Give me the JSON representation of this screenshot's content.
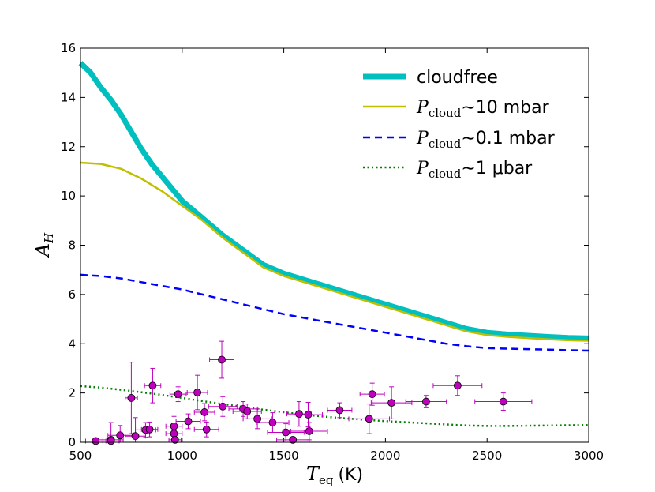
{
  "chart_data": {
    "type": "line",
    "title": "",
    "xlabel": {
      "symbol": "T",
      "subscript": "eq",
      "unit": "(K)"
    },
    "ylabel": {
      "symbol": "A",
      "subscript": "H"
    },
    "xlim": [
      500,
      3000
    ],
    "ylim": [
      0,
      16
    ],
    "xticks": [
      500,
      1000,
      1500,
      2000,
      2500,
      3000
    ],
    "yticks": [
      0,
      2,
      4,
      6,
      8,
      10,
      12,
      14,
      16
    ],
    "legend_position": "top-right",
    "series": [
      {
        "name": "cloudfree",
        "legend": {
          "math": "",
          "sub": "",
          "text": "cloudfree"
        },
        "color": "#00bfbf",
        "style": "solid",
        "weight": "thick",
        "x": [
          500,
          550,
          600,
          650,
          700,
          750,
          800,
          850,
          900,
          950,
          1000,
          1100,
          1200,
          1300,
          1400,
          1500,
          1600,
          1700,
          1800,
          1900,
          2000,
          2100,
          2200,
          2300,
          2400,
          2500,
          2600,
          2700,
          2800,
          2900,
          3000
        ],
        "y": [
          15.4,
          15.0,
          14.4,
          13.9,
          13.3,
          12.6,
          11.9,
          11.3,
          10.8,
          10.3,
          9.8,
          9.1,
          8.4,
          7.8,
          7.2,
          6.85,
          6.6,
          6.35,
          6.1,
          5.85,
          5.6,
          5.35,
          5.1,
          4.85,
          4.6,
          4.45,
          4.38,
          4.33,
          4.28,
          4.24,
          4.22
        ]
      },
      {
        "name": "P_cloud ~10 mbar",
        "legend": {
          "math": "P",
          "sub": "cloud",
          "text": "∼10 mbar"
        },
        "color": "#bfbf00",
        "style": "solid",
        "weight": "normal",
        "x": [
          500,
          600,
          700,
          800,
          900,
          1000,
          1100,
          1200,
          1300,
          1400,
          1500,
          1600,
          1700,
          1800,
          1900,
          2000,
          2100,
          2200,
          2300,
          2400,
          2500,
          2600,
          2700,
          2800,
          2900,
          3000
        ],
        "y": [
          11.35,
          11.3,
          11.1,
          10.7,
          10.2,
          9.6,
          9.0,
          8.3,
          7.7,
          7.1,
          6.75,
          6.5,
          6.25,
          6.0,
          5.75,
          5.5,
          5.25,
          5.0,
          4.75,
          4.5,
          4.35,
          4.28,
          4.23,
          4.18,
          4.14,
          4.12
        ]
      },
      {
        "name": "P_cloud ~0.1 mbar",
        "legend": {
          "math": "P",
          "sub": "cloud",
          "text": "∼0.1 mbar"
        },
        "color": "#0000ff",
        "style": "dashed",
        "weight": "normal",
        "x": [
          500,
          600,
          700,
          800,
          900,
          1000,
          1100,
          1200,
          1300,
          1400,
          1500,
          1600,
          1700,
          1800,
          1900,
          2000,
          2100,
          2200,
          2300,
          2400,
          2500,
          2600,
          2700,
          2800,
          2900,
          3000
        ],
        "y": [
          6.8,
          6.75,
          6.65,
          6.5,
          6.35,
          6.2,
          6.0,
          5.8,
          5.6,
          5.4,
          5.2,
          5.05,
          4.9,
          4.75,
          4.6,
          4.45,
          4.3,
          4.15,
          4.0,
          3.9,
          3.82,
          3.8,
          3.78,
          3.76,
          3.74,
          3.72
        ]
      },
      {
        "name": "P_cloud ~1 μbar",
        "legend": {
          "math": "P",
          "sub": "cloud",
          "text": "∼1 μbar"
        },
        "color": "#008000",
        "style": "dotted",
        "weight": "normal",
        "x": [
          500,
          600,
          700,
          800,
          900,
          1000,
          1100,
          1200,
          1300,
          1400,
          1500,
          1600,
          1700,
          1800,
          1900,
          2000,
          2100,
          2200,
          2300,
          2400,
          2500,
          2600,
          2700,
          2800,
          2900,
          3000
        ],
        "y": [
          2.28,
          2.22,
          2.13,
          2.03,
          1.92,
          1.8,
          1.67,
          1.55,
          1.43,
          1.32,
          1.22,
          1.12,
          1.04,
          0.97,
          0.91,
          0.86,
          0.81,
          0.77,
          0.72,
          0.68,
          0.66,
          0.66,
          0.67,
          0.68,
          0.69,
          0.7
        ]
      }
    ],
    "observations": {
      "color": "#bf00bf",
      "points": [
        {
          "x": 575,
          "y": 0.05,
          "xerr": 50,
          "yerr": 0.05
        },
        {
          "x": 650,
          "y": 0.1,
          "xerr": 60,
          "yerr": 0.7
        },
        {
          "x": 650,
          "y": 0.05,
          "xerr": 40,
          "yerr": 0.05
        },
        {
          "x": 695,
          "y": 0.28,
          "xerr": 60,
          "yerr": 0.4
        },
        {
          "x": 750,
          "y": 1.8,
          "xerr": 30,
          "yerr": 1.45
        },
        {
          "x": 770,
          "y": 0.25,
          "xerr": 50,
          "yerr": 0.75
        },
        {
          "x": 820,
          "y": 0.5,
          "xerr": 50,
          "yerr": 0.3
        },
        {
          "x": 840,
          "y": 0.52,
          "xerr": 40,
          "yerr": 0.3
        },
        {
          "x": 855,
          "y": 2.3,
          "xerr": 40,
          "yerr": 0.7
        },
        {
          "x": 960,
          "y": 0.65,
          "xerr": 40,
          "yerr": 0.4
        },
        {
          "x": 960,
          "y": 0.35,
          "xerr": 40,
          "yerr": 0.3
        },
        {
          "x": 965,
          "y": 0.1,
          "xerr": 30,
          "yerr": 0.1
        },
        {
          "x": 980,
          "y": 1.95,
          "xerr": 40,
          "yerr": 0.3
        },
        {
          "x": 1030,
          "y": 0.85,
          "xerr": 60,
          "yerr": 0.3
        },
        {
          "x": 1075,
          "y": 2.02,
          "xerr": 50,
          "yerr": 0.7
        },
        {
          "x": 1110,
          "y": 1.22,
          "xerr": 50,
          "yerr": 0.35
        },
        {
          "x": 1120,
          "y": 0.52,
          "xerr": 60,
          "yerr": 0.3
        },
        {
          "x": 1195,
          "y": 3.35,
          "xerr": 60,
          "yerr": 0.75
        },
        {
          "x": 1200,
          "y": 1.45,
          "xerr": 70,
          "yerr": 0.4
        },
        {
          "x": 1300,
          "y": 1.35,
          "xerr": 70,
          "yerr": 0.3
        },
        {
          "x": 1320,
          "y": 1.25,
          "xerr": 70,
          "yerr": 0.3
        },
        {
          "x": 1370,
          "y": 0.95,
          "xerr": 70,
          "yerr": 0.4
        },
        {
          "x": 1445,
          "y": 0.8,
          "xerr": 80,
          "yerr": 0.4
        },
        {
          "x": 1510,
          "y": 0.4,
          "xerr": 90,
          "yerr": 0.35
        },
        {
          "x": 1545,
          "y": 0.1,
          "xerr": 80,
          "yerr": 0.1
        },
        {
          "x": 1575,
          "y": 1.15,
          "xerr": 60,
          "yerr": 0.5
        },
        {
          "x": 1620,
          "y": 1.12,
          "xerr": 70,
          "yerr": 0.5
        },
        {
          "x": 1625,
          "y": 0.45,
          "xerr": 90,
          "yerr": 0.35
        },
        {
          "x": 1775,
          "y": 1.3,
          "xerr": 60,
          "yerr": 0.3
        },
        {
          "x": 1920,
          "y": 0.95,
          "xerr": 100,
          "yerr": 0.6
        },
        {
          "x": 1935,
          "y": 1.95,
          "xerr": 60,
          "yerr": 0.45
        },
        {
          "x": 2030,
          "y": 1.6,
          "xerr": 100,
          "yerr": 0.65
        },
        {
          "x": 2200,
          "y": 1.65,
          "xerr": 100,
          "yerr": 0.25
        },
        {
          "x": 2355,
          "y": 2.3,
          "xerr": 120,
          "yerr": 0.4
        },
        {
          "x": 2580,
          "y": 1.65,
          "xerr": 140,
          "yerr": 0.35
        }
      ]
    }
  }
}
